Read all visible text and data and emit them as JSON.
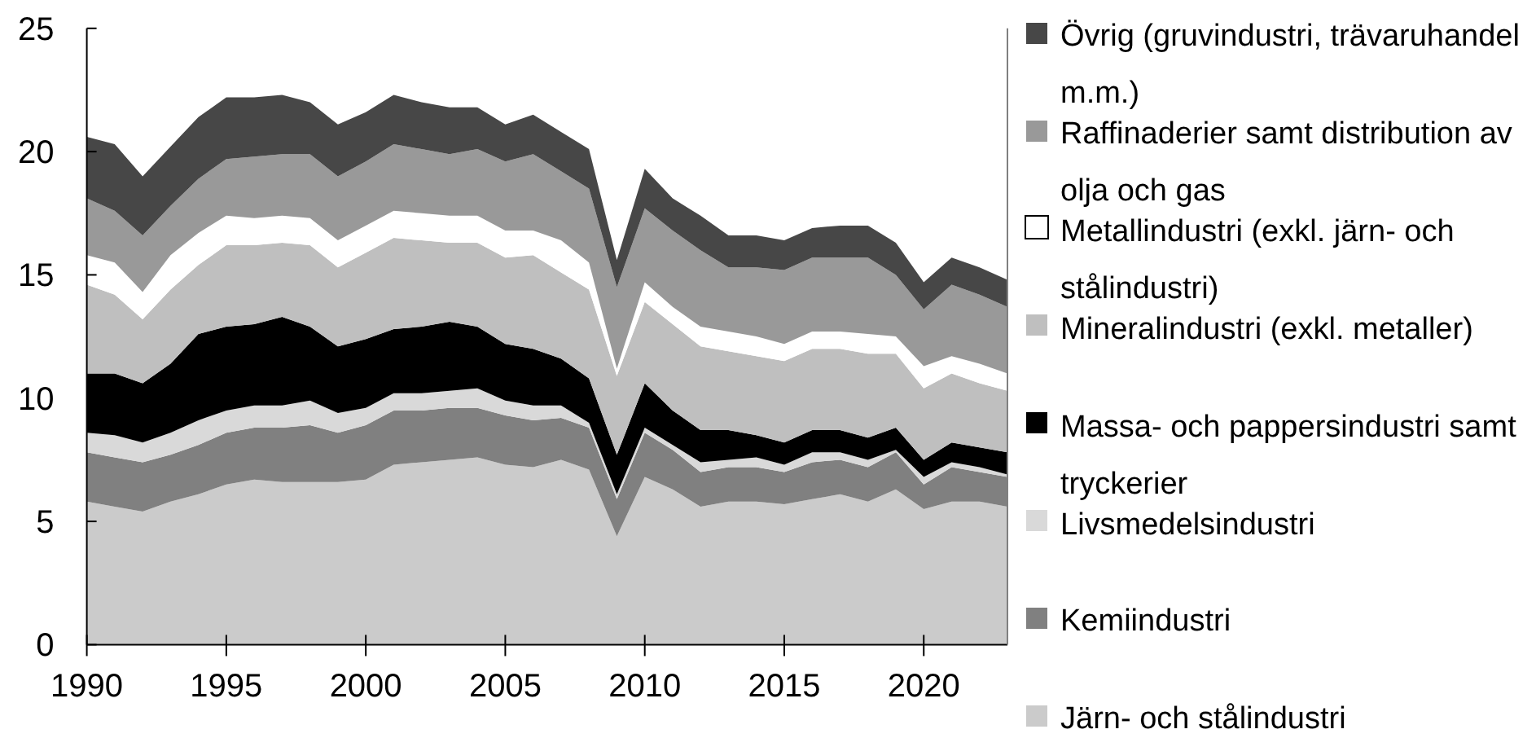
{
  "chart_data": {
    "type": "area",
    "stacked": true,
    "legend": "right",
    "x": [
      1990,
      1991,
      1992,
      1993,
      1994,
      1995,
      1996,
      1997,
      1998,
      1999,
      2000,
      2001,
      2002,
      2003,
      2004,
      2005,
      2006,
      2007,
      2008,
      2009,
      2010,
      2011,
      2012,
      2013,
      2014,
      2015,
      2016,
      2017,
      2018,
      2019,
      2020,
      2021,
      2022,
      2023
    ],
    "xlim": [
      1990,
      2023
    ],
    "xticks": [
      1990,
      1995,
      2000,
      2005,
      2010,
      2015,
      2020
    ],
    "ylim": [
      0,
      25
    ],
    "yticks": [
      0,
      5,
      10,
      15,
      20,
      25
    ],
    "series": [
      {
        "name": "Järn- och stålindustri",
        "color": "#cbcbcb",
        "values": [
          5.8,
          5.6,
          5.4,
          5.8,
          6.1,
          6.5,
          6.7,
          6.6,
          6.6,
          6.6,
          6.7,
          7.3,
          7.4,
          7.5,
          7.6,
          7.3,
          7.2,
          7.5,
          7.1,
          4.4,
          6.8,
          6.3,
          5.6,
          5.8,
          5.8,
          5.7,
          5.9,
          6.1,
          5.8,
          6.3,
          5.5,
          5.8,
          5.8,
          5.6
        ]
      },
      {
        "name": "Kemiindustri",
        "color": "#808080",
        "values": [
          2.0,
          2.0,
          2.0,
          1.9,
          2.0,
          2.1,
          2.1,
          2.2,
          2.3,
          2.0,
          2.2,
          2.2,
          2.1,
          2.1,
          2.0,
          2.0,
          1.9,
          1.7,
          1.7,
          1.5,
          1.8,
          1.6,
          1.4,
          1.4,
          1.4,
          1.3,
          1.5,
          1.4,
          1.4,
          1.5,
          1.0,
          1.4,
          1.2,
          1.2
        ]
      },
      {
        "name": "Livsmedelsindustri",
        "color": "#d9d9d9",
        "values": [
          0.8,
          0.9,
          0.8,
          0.9,
          1.0,
          0.9,
          0.9,
          0.9,
          1.0,
          0.8,
          0.7,
          0.7,
          0.7,
          0.7,
          0.8,
          0.6,
          0.6,
          0.5,
          0.2,
          0.2,
          0.2,
          0.2,
          0.4,
          0.3,
          0.4,
          0.3,
          0.4,
          0.3,
          0.3,
          0.1,
          0.3,
          0.2,
          0.2,
          0.1
        ]
      },
      {
        "name": "Massa- och pappersindustri samt tryckerier",
        "color": "#000000",
        "values": [
          2.4,
          2.5,
          2.4,
          2.8,
          3.5,
          3.4,
          3.3,
          3.6,
          3.0,
          2.7,
          2.8,
          2.6,
          2.7,
          2.8,
          2.5,
          2.3,
          2.3,
          1.9,
          1.8,
          1.6,
          1.8,
          1.4,
          1.3,
          1.2,
          0.9,
          0.9,
          0.9,
          0.9,
          0.9,
          0.9,
          0.7,
          0.8,
          0.8,
          0.9
        ]
      },
      {
        "name": "Mineralindustri (exkl. metaller)",
        "color": "#bfbfbf",
        "values": [
          3.6,
          3.2,
          2.6,
          3.0,
          2.8,
          3.3,
          3.2,
          3.0,
          3.3,
          3.2,
          3.5,
          3.7,
          3.5,
          3.2,
          3.4,
          3.5,
          3.8,
          3.5,
          3.6,
          3.2,
          3.3,
          3.5,
          3.4,
          3.2,
          3.2,
          3.3,
          3.3,
          3.3,
          3.4,
          3.0,
          2.9,
          2.8,
          2.6,
          2.5
        ]
      },
      {
        "name": "Metallindustri (exkl. järn- och stålindustri)",
        "color": "#ffffff",
        "values": [
          1.2,
          1.3,
          1.1,
          1.4,
          1.3,
          1.2,
          1.1,
          1.1,
          1.1,
          1.1,
          1.1,
          1.1,
          1.1,
          1.1,
          1.1,
          1.1,
          1.0,
          1.3,
          1.1,
          0.3,
          0.8,
          0.7,
          0.8,
          0.8,
          0.8,
          0.7,
          0.7,
          0.7,
          0.8,
          0.7,
          0.9,
          0.7,
          0.8,
          0.7
        ]
      },
      {
        "name": "Raffinaderier samt distribution av olja och gas",
        "color": "#999999",
        "values": [
          2.3,
          2.1,
          2.3,
          2.0,
          2.2,
          2.3,
          2.5,
          2.5,
          2.6,
          2.6,
          2.6,
          2.7,
          2.6,
          2.5,
          2.7,
          2.8,
          3.1,
          2.8,
          3.0,
          3.3,
          3.0,
          3.1,
          3.1,
          2.6,
          2.8,
          3.0,
          3.0,
          3.0,
          3.1,
          2.5,
          2.3,
          2.9,
          2.8,
          2.7
        ]
      },
      {
        "name": "Övrig (gruvindustri, trävaruhandel m.m.)",
        "color": "#474747",
        "values": [
          2.5,
          2.7,
          2.4,
          2.4,
          2.5,
          2.5,
          2.4,
          2.4,
          2.1,
          2.1,
          2.0,
          2.0,
          1.9,
          1.9,
          1.7,
          1.5,
          1.6,
          1.6,
          1.6,
          1.1,
          1.6,
          1.3,
          1.4,
          1.3,
          1.3,
          1.2,
          1.2,
          1.3,
          1.3,
          1.3,
          1.1,
          1.1,
          1.1,
          1.1
        ]
      }
    ]
  }
}
